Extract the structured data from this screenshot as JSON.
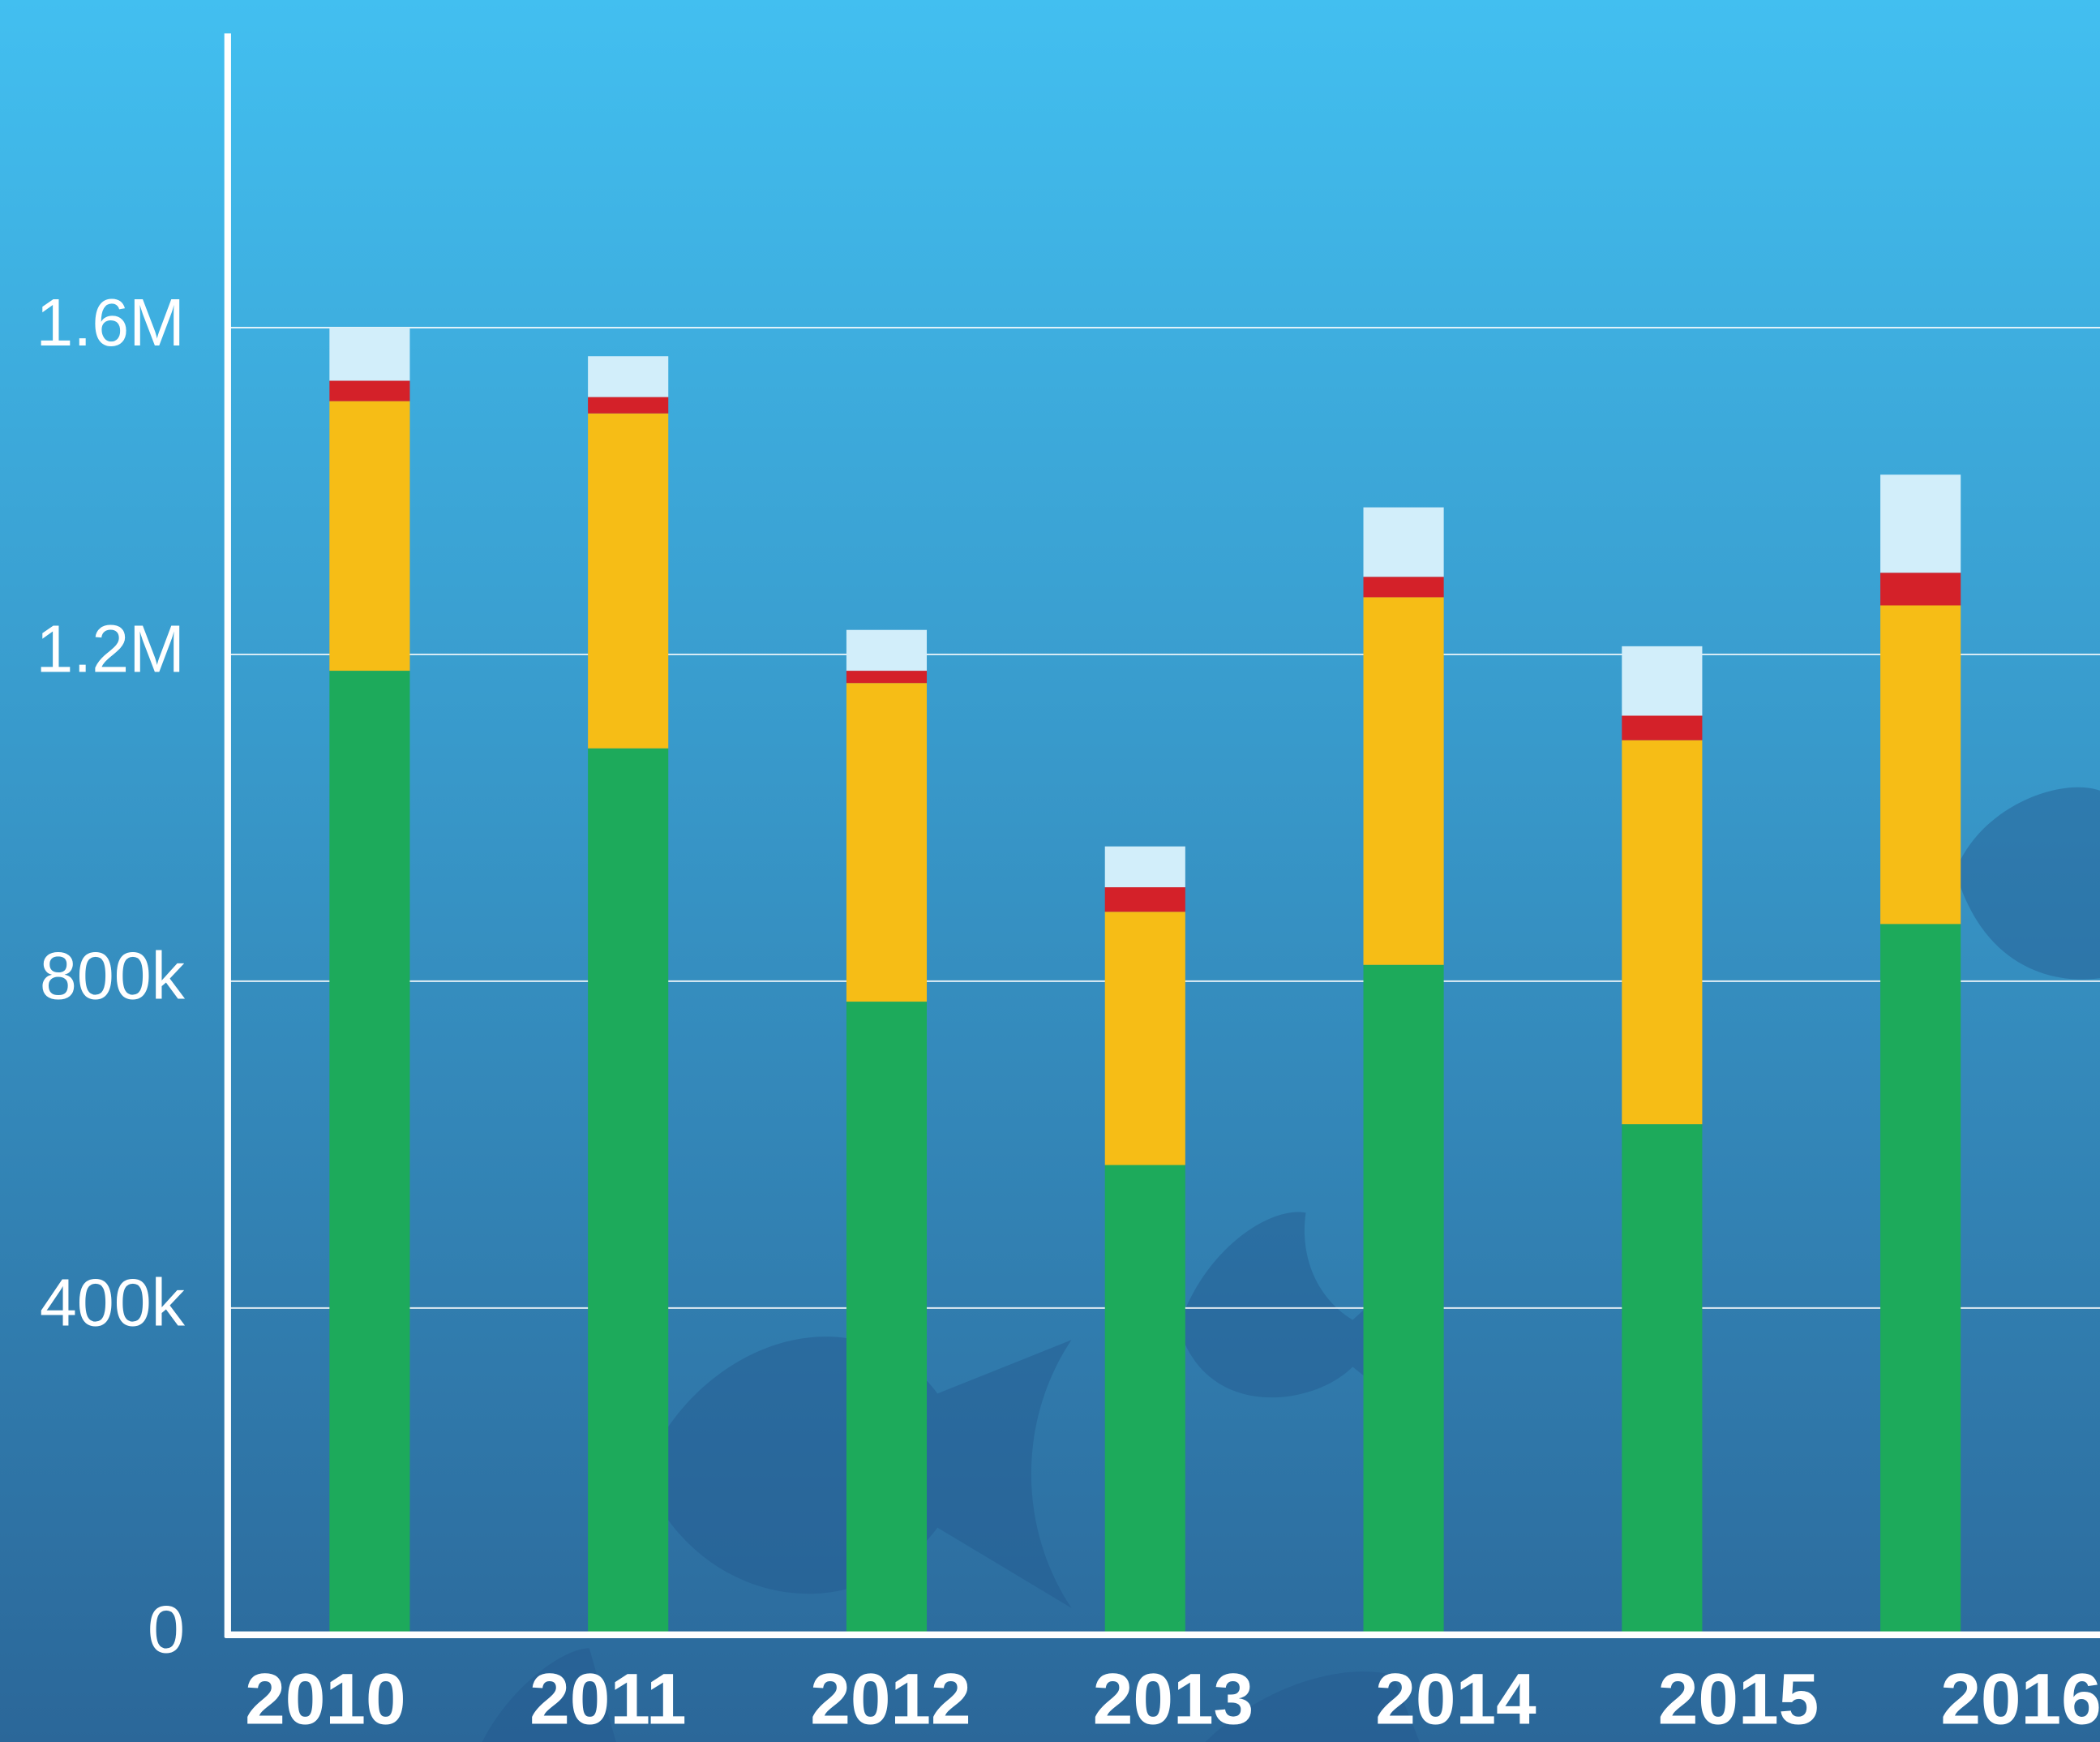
{
  "chart_data": {
    "type": "stacked-bar",
    "categories": [
      "2010",
      "2011",
      "2012",
      "2013",
      "2014",
      "2015",
      "2016"
    ],
    "series": [
      {
        "color": "#1daa5b",
        "values": [
          1180000,
          1085000,
          775000,
          575000,
          820000,
          625000,
          870000
        ]
      },
      {
        "color": "#f6bd16",
        "values": [
          330000,
          410000,
          390000,
          310000,
          450000,
          470000,
          390000
        ]
      },
      {
        "color": "#d42129",
        "values": [
          25000,
          20000,
          15000,
          30000,
          25000,
          30000,
          40000
        ]
      },
      {
        "color": "#d2eefa",
        "values": [
          65000,
          50000,
          50000,
          50000,
          85000,
          85000,
          120000
        ]
      }
    ],
    "ylim": [
      0,
      1960000
    ],
    "yticks": [
      0,
      {
        "value": 400000,
        "label": "400k"
      },
      {
        "value": 800000,
        "label": "800k"
      },
      {
        "value": 1200000,
        "label": "1.2M"
      },
      {
        "value": 1600000,
        "label": "1.6M"
      }
    ],
    "grid": true
  }
}
